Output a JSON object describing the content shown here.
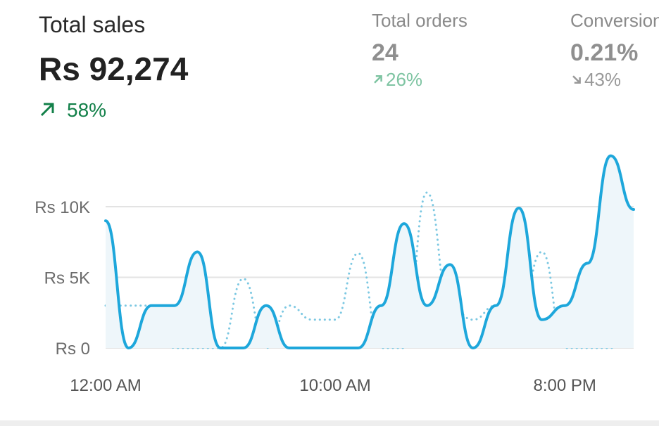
{
  "header": {
    "metrics": [
      {
        "label": "Total sales",
        "value": "Rs 92,274",
        "change": "58%",
        "direction": "up"
      },
      {
        "label": "Total orders",
        "value": "24",
        "change": "26%",
        "direction": "up"
      },
      {
        "label": "Conversion",
        "value": "0.21%",
        "change": "43%",
        "direction": "down"
      }
    ]
  },
  "chart_data": {
    "type": "line",
    "categories": [
      "12:00 AM",
      null,
      null,
      null,
      null,
      null,
      null,
      null,
      null,
      null,
      "10:00 AM",
      null,
      null,
      null,
      null,
      null,
      null,
      null,
      null,
      null,
      "8:00 PM",
      null,
      null,
      null
    ],
    "series": [
      {
        "color": "#1ea7db",
        "line_style": "solid",
        "fill": true,
        "values": [
          9000,
          0,
          3000,
          3000,
          6800,
          0,
          0,
          3000,
          0,
          0,
          0,
          0,
          3000,
          8800,
          3000,
          5900,
          0,
          3000,
          9900,
          2000,
          3000,
          6000,
          13600,
          9800
        ]
      },
      {
        "color": "#7cc8e2",
        "line_style": "dotted",
        "fill": false,
        "values": [
          3000,
          3000,
          3000,
          0,
          0,
          0,
          4900,
          0,
          3000,
          2000,
          2000,
          6700,
          0,
          0,
          11000,
          3000,
          2000,
          3000,
          2000,
          6800,
          0,
          0,
          0,
          3000
        ]
      }
    ],
    "ylim": [
      0,
      14000
    ],
    "yticks": [
      {
        "value": 0,
        "label": "Rs 0"
      },
      {
        "value": 5000,
        "label": "Rs 5K"
      },
      {
        "value": 10000,
        "label": "Rs 10K"
      }
    ],
    "grid": true
  }
}
